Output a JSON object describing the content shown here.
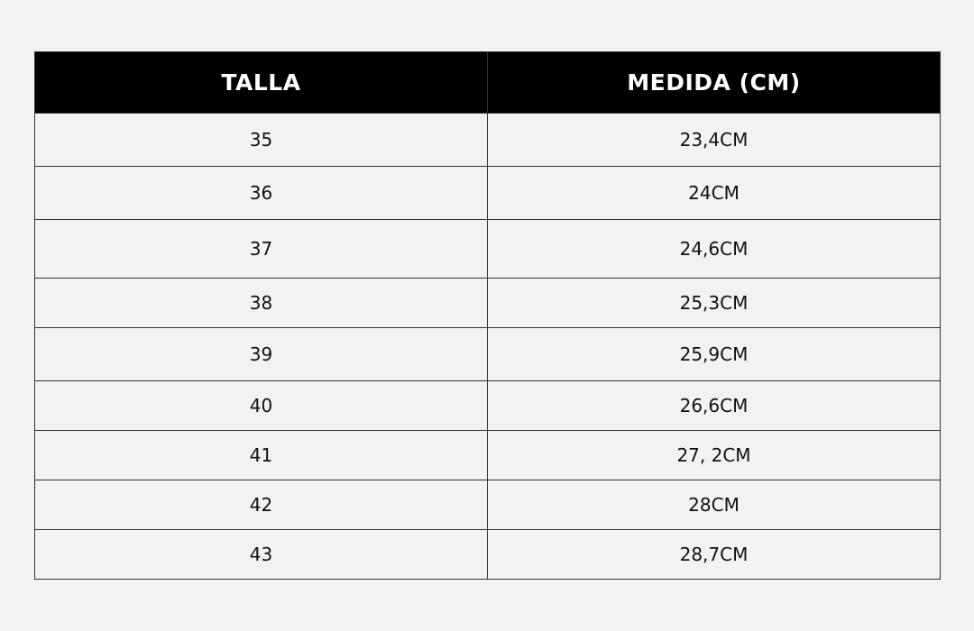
{
  "table": {
    "headers": [
      "TALLA",
      "MEDIDA (CM)"
    ],
    "rows": [
      [
        "35",
        "23,4CM"
      ],
      [
        "36",
        "24CM"
      ],
      [
        "37",
        "24,6CM"
      ],
      [
        "38",
        "25,3CM"
      ],
      [
        "39",
        "25,9CM"
      ],
      [
        "40",
        "26,6CM"
      ],
      [
        "41",
        "27, 2CM"
      ],
      [
        "42",
        "28CM"
      ],
      [
        "43",
        "28,7CM"
      ]
    ]
  }
}
